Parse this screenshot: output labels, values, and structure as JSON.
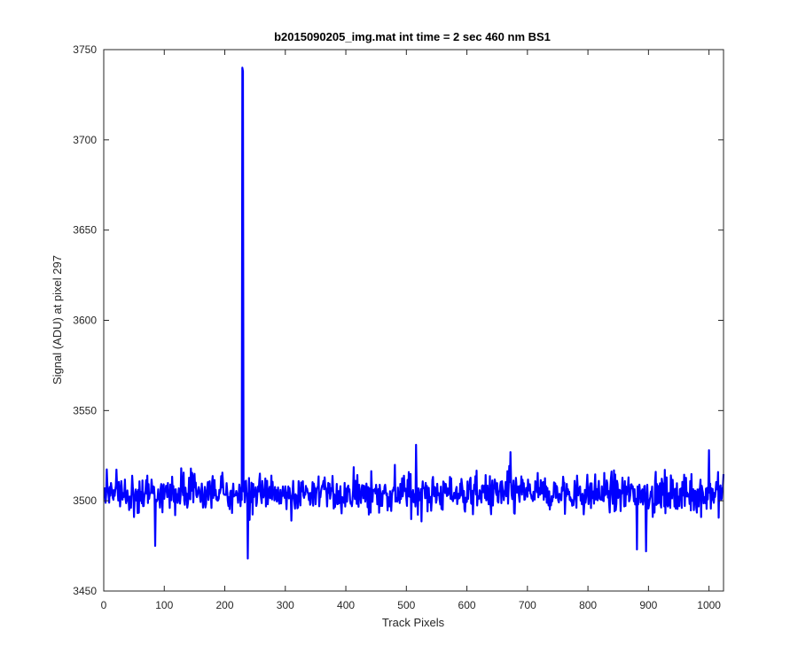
{
  "chart_data": {
    "type": "line",
    "title": "b2015090205_img.mat int time = 2 sec  460 nm BS1",
    "xlabel": "Track Pixels",
    "ylabel": "Signal (ADU) at pixel 297",
    "xlim": [
      0,
      1024
    ],
    "ylim": [
      3450,
      3750
    ],
    "xticks": [
      0,
      100,
      200,
      300,
      400,
      500,
      600,
      700,
      800,
      900,
      1000
    ],
    "yticks": [
      3450,
      3500,
      3550,
      3600,
      3650,
      3700,
      3750
    ],
    "grid": false,
    "legend": "none",
    "series": [
      {
        "color": "#0000ff",
        "points": 1024,
        "baseline": 3504,
        "noise_amplitude": 12,
        "spike": {
          "x": 228,
          "y": 3740
        },
        "notable_points": [
          {
            "x": 237,
            "y": 3468
          },
          {
            "x": 84,
            "y": 3475
          },
          {
            "x": 880,
            "y": 3473
          },
          {
            "x": 895,
            "y": 3472
          },
          {
            "x": 515,
            "y": 3531
          },
          {
            "x": 671,
            "y": 3527
          },
          {
            "x": 999,
            "y": 3528
          }
        ]
      }
    ]
  }
}
